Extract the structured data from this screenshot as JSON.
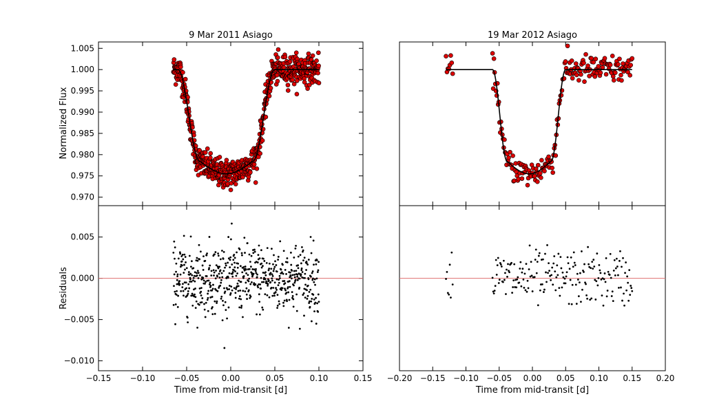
{
  "chart_data": [
    {
      "id": "left-top",
      "type": "scatter",
      "title": "9 Mar 2011 Asiago",
      "ylabel": "Normalized Flux",
      "xlim": [
        -0.15,
        0.15
      ],
      "ylim": [
        0.968,
        1.0065
      ],
      "yticks": [
        "0.970",
        "0.975",
        "0.980",
        "0.985",
        "0.990",
        "0.995",
        "1.000",
        "1.005"
      ],
      "point_color": "#dd0000",
      "model_color": "#000000",
      "model": {
        "t_start": -0.06,
        "t_end": 0.05,
        "depth": 0.0245,
        "ingress": 0.025
      },
      "observations": {
        "x_range": [
          -0.065,
          0.1
        ],
        "count": 620,
        "scatter": 0.0017
      }
    },
    {
      "id": "right-top",
      "type": "scatter",
      "title": "19 Mar 2012 Asiago",
      "xlim": [
        -0.2,
        0.2
      ],
      "ylim": [
        0.968,
        1.0065
      ],
      "point_color": "#dd0000",
      "model_color": "#000000",
      "model": {
        "x_range": [
          -0.13,
          0.15
        ],
        "t_start": -0.06,
        "t_end": 0.05,
        "depth": 0.0245,
        "ingress": 0.022
      },
      "observations": {
        "segments": [
          [
            -0.13,
            -0.12,
            8
          ],
          [
            -0.06,
            0.15,
            200
          ]
        ],
        "scatter": 0.0017
      }
    },
    {
      "id": "left-bottom",
      "type": "scatter",
      "ylabel": "Residuals",
      "xlabel": "Time from mid-transit [d]",
      "xlim": [
        -0.15,
        0.15
      ],
      "ylim": [
        -0.0112,
        0.0088
      ],
      "xticks": [
        "−0.15",
        "−0.10",
        "−0.05",
        "0.00",
        "0.05",
        "0.10",
        "0.15"
      ],
      "yticks": [
        "−0.010",
        "−0.005",
        "0.000",
        "0.005"
      ],
      "point_color": "#000000",
      "zero_line_color": "#e07070",
      "observations": {
        "x_range": [
          -0.065,
          0.1
        ],
        "count": 620,
        "scatter": 0.0021
      }
    },
    {
      "id": "right-bottom",
      "type": "scatter",
      "xlabel": "Time from mid-transit [d]",
      "xlim": [
        -0.2,
        0.2
      ],
      "ylim": [
        -0.0112,
        0.0088
      ],
      "xticks": [
        "−0.20",
        "−0.15",
        "−0.10",
        "−0.05",
        "0.00",
        "0.05",
        "0.10",
        "0.15",
        "0.20"
      ],
      "point_color": "#000000",
      "zero_line_color": "#e07070",
      "observations": {
        "segments": [
          [
            -0.13,
            -0.12,
            8
          ],
          [
            -0.06,
            0.15,
            200
          ]
        ],
        "scatter": 0.0017
      }
    }
  ]
}
